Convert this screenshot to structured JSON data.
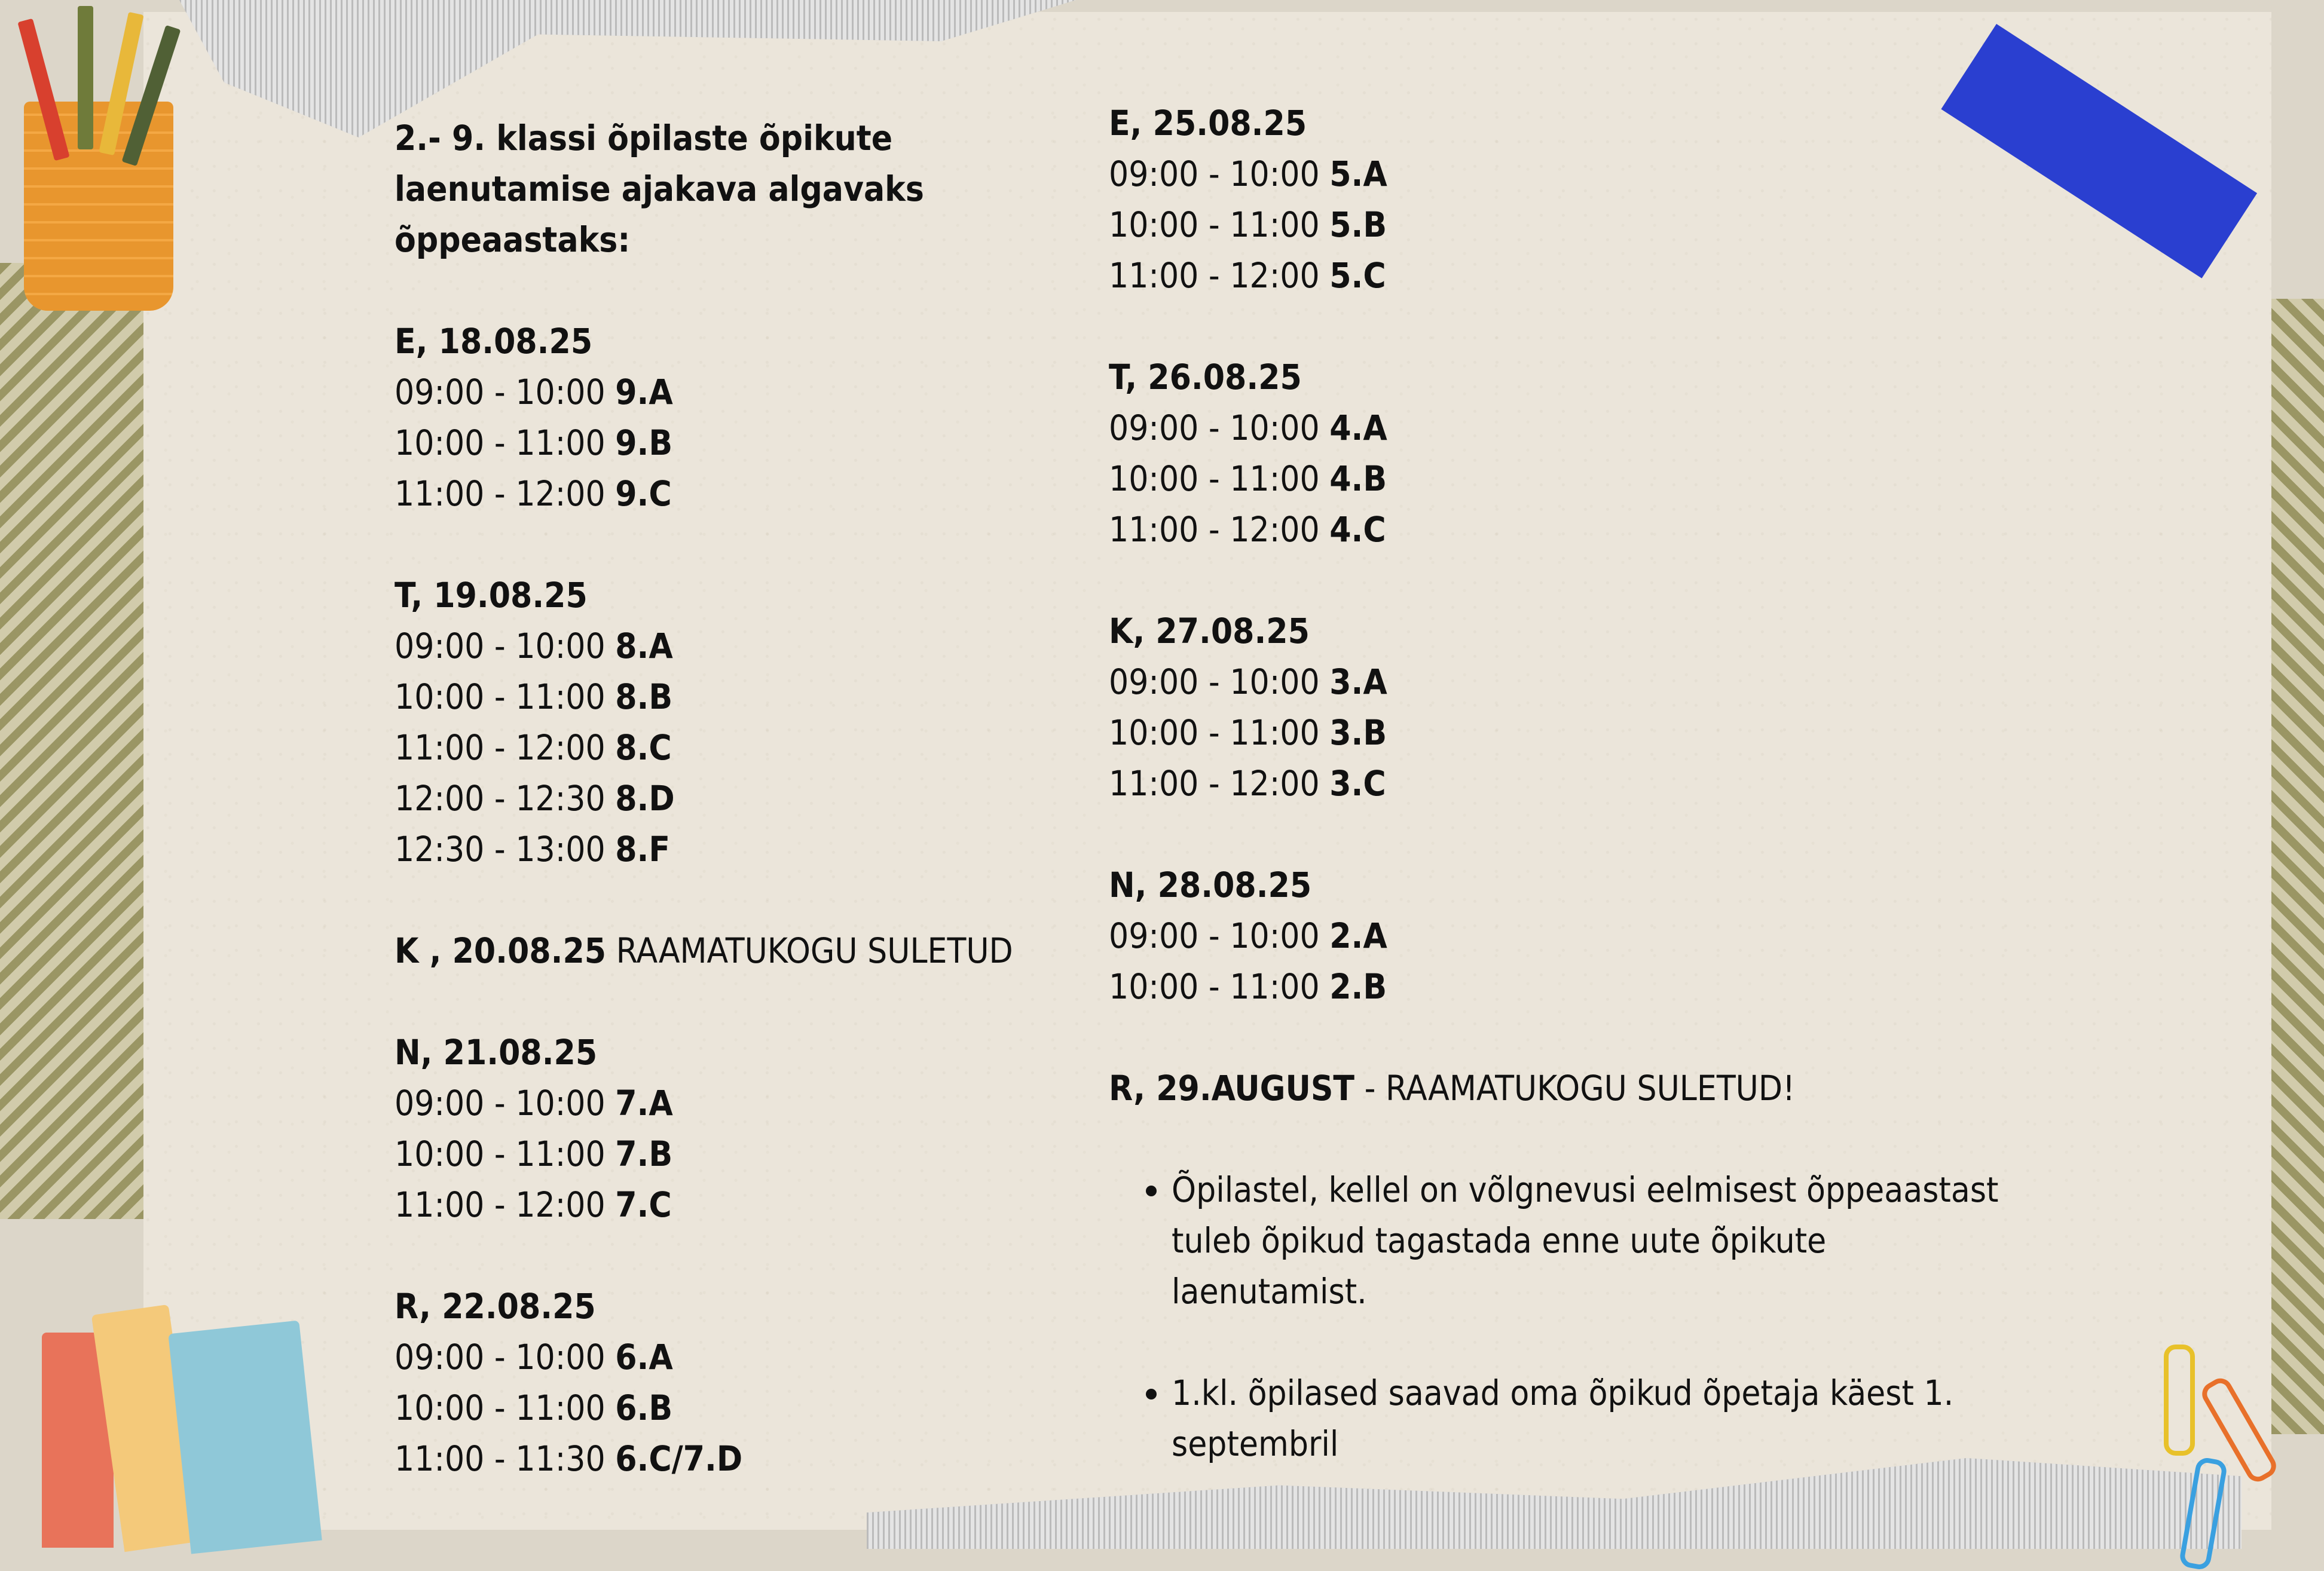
{
  "title": "2.- 9. klassi õpilaste õpikute laenutamise ajakava algavaks õppeaastaks:",
  "left_days": [
    {
      "label": "E, 18.08.25",
      "slots": [
        {
          "time": "09:00 - 10:00 ",
          "class": "9.A"
        },
        {
          "time": "10:00 - 11:00 ",
          "class": "9.B"
        },
        {
          "time": "11:00 - 12:00 ",
          "class": "9.C"
        }
      ]
    },
    {
      "label": "T, 19.08.25",
      "slots": [
        {
          "time": "09:00 - 10:00 ",
          "class": "8.A"
        },
        {
          "time": "10:00 - 11:00 ",
          "class": "8.B"
        },
        {
          "time": "11:00 - 12:00 ",
          "class": "8.C"
        },
        {
          "time": "12:00 - 12:30 ",
          "class": "8.D"
        },
        {
          "time": "12:30 - 13:00 ",
          "class": "8.F"
        }
      ]
    },
    {
      "label": "K , 20.08.25",
      "note": " RAAMATUKOGU SULETUD",
      "slots": []
    },
    {
      "label": "N, 21.08.25",
      "slots": [
        {
          "time": "09:00 - 10:00 ",
          "class": "7.A"
        },
        {
          "time": "10:00 - 11:00 ",
          "class": "7.B"
        },
        {
          "time": "11:00 - 12:00 ",
          "class": "7.C"
        }
      ]
    },
    {
      "label": "R, 22.08.25",
      "slots": [
        {
          "time": "09:00 - 10:00 ",
          "class": "6.A"
        },
        {
          "time": "10:00 - 11:00 ",
          "class": "6.B"
        },
        {
          "time": "11:00 - 11:30 ",
          "class": "6.C/7.D"
        }
      ]
    }
  ],
  "right_days": [
    {
      "label": "E, 25.08.25",
      "slots": [
        {
          "time": "09:00 - 10:00 ",
          "class": "5.A"
        },
        {
          "time": "10:00 - 11:00 ",
          "class": "5.B"
        },
        {
          "time": "11:00 - 12:00 ",
          "class": "5.C"
        }
      ]
    },
    {
      "label": "T, 26.08.25",
      "slots": [
        {
          "time": "09:00 - 10:00 ",
          "class": "4.A"
        },
        {
          "time": "10:00 - 11:00 ",
          "class": "4.B"
        },
        {
          "time": "11:00 - 12:00 ",
          "class": "4.C"
        }
      ]
    },
    {
      "label": "K, 27.08.25",
      "slots": [
        {
          "time": "09:00 - 10:00 ",
          "class": "3.A"
        },
        {
          "time": "10:00 - 11:00 ",
          "class": "3.B"
        },
        {
          "time": "11:00 - 12:00 ",
          "class": "3.C"
        }
      ]
    },
    {
      "label": "N, 28.08.25",
      "slots": [
        {
          "time": "09:00 - 10:00 ",
          "class": "2.A"
        },
        {
          "time": "10:00 - 11:00 ",
          "class": "2.B"
        }
      ]
    },
    {
      "label": "R, 29.AUGUST",
      "note": " -  RAAMATUKOGU SULETUD!",
      "slots": []
    }
  ],
  "notes": [
    "Õpilastel, kellel on võlgnevusi eelmisest õppeaastast tuleb õpikud tagastada enne uute õpikute laenutamist.",
    "1.kl. õpilased saavad oma õpikud õpetaja käest  1. septembril"
  ],
  "colors": {
    "paper": "#ebe5da",
    "tape": "#2a3fd0",
    "text": "#111111"
  }
}
